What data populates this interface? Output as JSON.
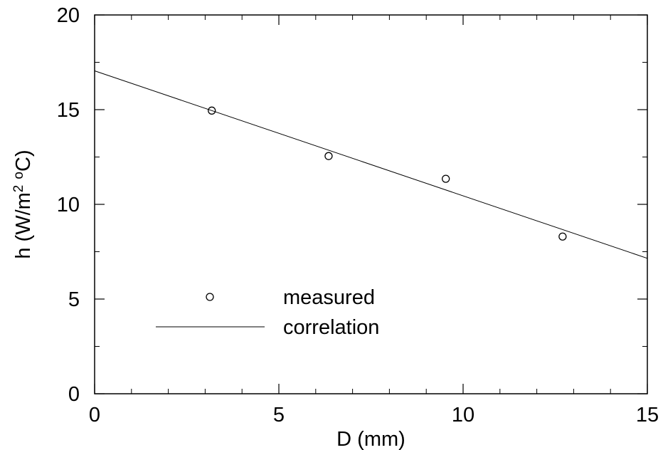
{
  "chart_data": {
    "type": "scatter",
    "xlabel": "D (mm)",
    "ylabel": {
      "prefix": "h (W/m",
      "sup1": "2",
      "mid": " ",
      "sup2": "o",
      "suffix": "C)"
    },
    "xlim": [
      0,
      15
    ],
    "ylim": [
      0,
      20
    ],
    "x_ticks": [
      0,
      5,
      10,
      15
    ],
    "y_ticks": [
      0,
      5,
      10,
      15,
      20
    ],
    "x_tick_labels": [
      "0",
      "5",
      "10",
      "15"
    ],
    "y_tick_labels": [
      "0",
      "5",
      "10",
      "15",
      "20"
    ],
    "x_minor_step": 1,
    "y_minor_step": 2.5,
    "grid": false,
    "legend_position": "lower-left",
    "series": [
      {
        "name": "measured",
        "kind": "scatter",
        "marker": "open-circle",
        "x": [
          3.18,
          6.35,
          9.53,
          12.7
        ],
        "y": [
          14.95,
          12.55,
          11.35,
          8.3
        ]
      },
      {
        "name": "correlation",
        "kind": "line",
        "x": [
          0,
          15
        ],
        "y": [
          17.05,
          7.15
        ]
      }
    ],
    "color": "#000000"
  }
}
